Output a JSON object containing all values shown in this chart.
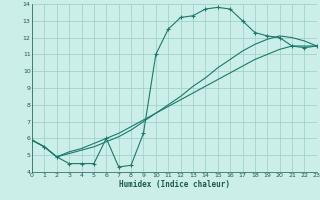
{
  "title": "",
  "xlabel": "Humidex (Indice chaleur)",
  "ylabel": "",
  "xlim": [
    0,
    23
  ],
  "ylim": [
    4,
    14
  ],
  "yticks": [
    4,
    5,
    6,
    7,
    8,
    9,
    10,
    11,
    12,
    13,
    14
  ],
  "xticks": [
    0,
    1,
    2,
    3,
    4,
    5,
    6,
    7,
    8,
    9,
    10,
    11,
    12,
    13,
    14,
    15,
    16,
    17,
    18,
    19,
    20,
    21,
    22,
    23
  ],
  "background_color": "#cceee8",
  "grid_color": "#99cccc",
  "line_color": "#1a7a6a",
  "line1_x": [
    0,
    1,
    2,
    3,
    4,
    5,
    6,
    7,
    8,
    9,
    10,
    11,
    12,
    13,
    14,
    15,
    16,
    17,
    18,
    19,
    20,
    21,
    22,
    23
  ],
  "line1_y": [
    5.9,
    5.5,
    4.9,
    4.5,
    4.5,
    4.5,
    6.0,
    4.3,
    4.4,
    6.3,
    11.0,
    12.5,
    13.2,
    13.3,
    13.7,
    13.8,
    13.7,
    13.0,
    12.3,
    12.1,
    12.0,
    11.5,
    11.4,
    11.5
  ],
  "line2_x": [
    0,
    1,
    2,
    3,
    4,
    5,
    6,
    7,
    8,
    9,
    10,
    11,
    12,
    13,
    14,
    15,
    16,
    17,
    18,
    19,
    20,
    21,
    22,
    23
  ],
  "line2_y": [
    5.9,
    5.5,
    4.9,
    5.2,
    5.4,
    5.7,
    6.0,
    6.3,
    6.7,
    7.1,
    7.5,
    7.9,
    8.3,
    8.7,
    9.1,
    9.5,
    9.9,
    10.3,
    10.7,
    11.0,
    11.3,
    11.5,
    11.5,
    11.5
  ],
  "line3_x": [
    0,
    1,
    2,
    3,
    4,
    5,
    6,
    7,
    8,
    9,
    10,
    11,
    12,
    13,
    14,
    15,
    16,
    17,
    18,
    19,
    20,
    21,
    22,
    23
  ],
  "line3_y": [
    5.9,
    5.5,
    4.9,
    5.1,
    5.3,
    5.5,
    5.8,
    6.1,
    6.5,
    7.0,
    7.5,
    8.0,
    8.5,
    9.1,
    9.6,
    10.2,
    10.7,
    11.2,
    11.6,
    11.9,
    12.1,
    12.0,
    11.8,
    11.5
  ]
}
